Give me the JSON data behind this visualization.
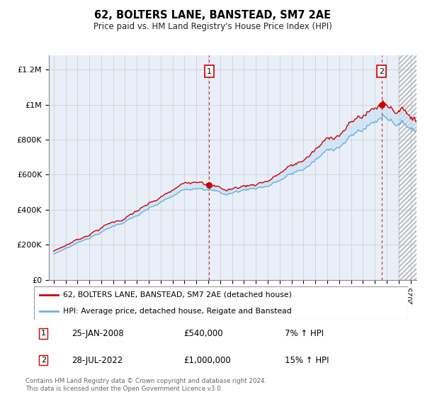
{
  "title": "62, BOLTERS LANE, BANSTEAD, SM7 2AE",
  "subtitle": "Price paid vs. HM Land Registry's House Price Index (HPI)",
  "ylabel_ticks": [
    "£0",
    "£200K",
    "£400K",
    "£600K",
    "£800K",
    "£1M",
    "£1.2M"
  ],
  "ytick_values": [
    0,
    200000,
    400000,
    600000,
    800000,
    1000000,
    1200000
  ],
  "ylim": [
    0,
    1280000
  ],
  "xlim_start": 1994.6,
  "xlim_end": 2025.5,
  "sale1_x": 2008.07,
  "sale1_y": 540000,
  "sale2_x": 2022.57,
  "sale2_y": 1000000,
  "legend1": "62, BOLTERS LANE, BANSTEAD, SM7 2AE (detached house)",
  "legend2": "HPI: Average price, detached house, Reigate and Banstead",
  "sale1_date": "25-JAN-2008",
  "sale1_price": "£540,000",
  "sale1_hpi": "7% ↑ HPI",
  "sale2_date": "28-JUL-2022",
  "sale2_price": "£1,000,000",
  "sale2_hpi": "15% ↑ HPI",
  "footnote": "Contains HM Land Registry data © Crown copyright and database right 2024.\nThis data is licensed under the Open Government Licence v3.0.",
  "line_color_red": "#cc0000",
  "line_color_blue": "#6aaee0",
  "fill_color_blue": "#c8dff5",
  "bg_color": "#e8eff8",
  "grid_color": "#c8c8c8",
  "hatch_bg": "#d8d8d8"
}
